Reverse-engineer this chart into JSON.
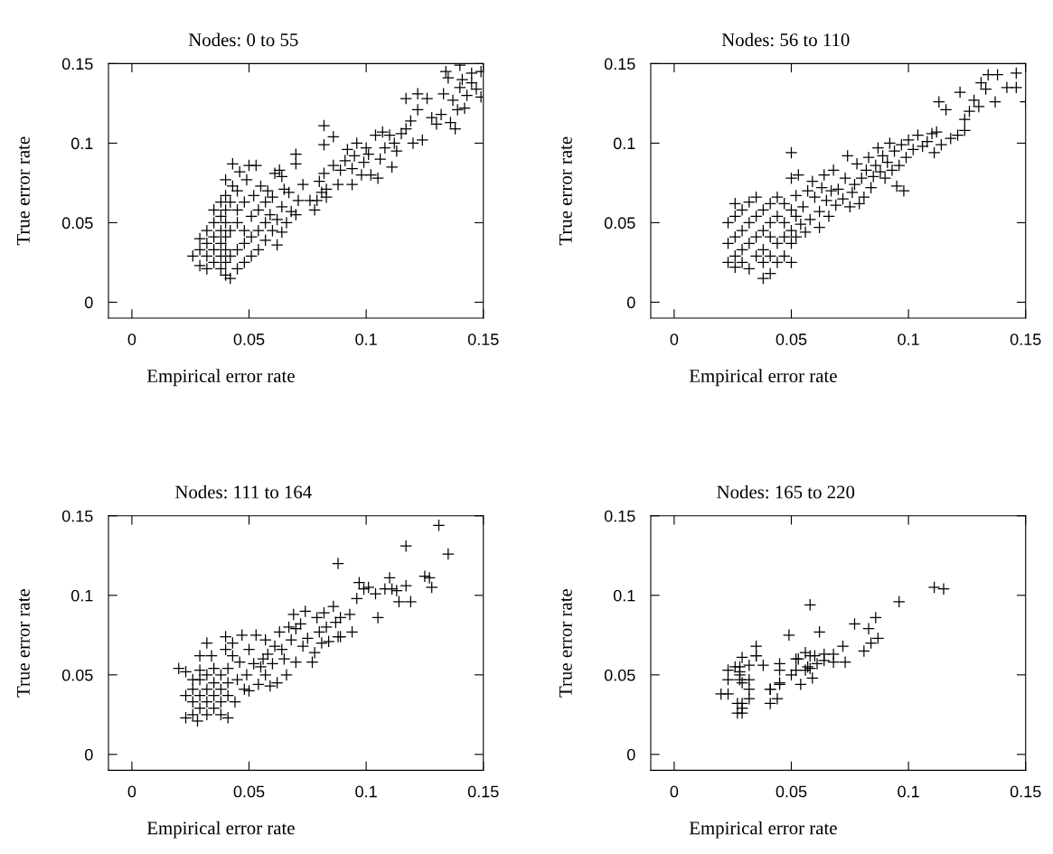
{
  "chart_data": [
    {
      "type": "scatter",
      "title": "Nodes: 0 to 55",
      "xlabel": "Empirical error rate",
      "ylabel": "True error rate",
      "marker": "cross",
      "xlim": [
        -0.01,
        0.15
      ],
      "ylim": [
        -0.01,
        0.15
      ],
      "xticks": [
        0,
        0.05,
        0.1,
        0.15
      ],
      "yticks": [
        0,
        0.05,
        0.1,
        0.15
      ],
      "series": [
        {
          "color": "#000000",
          "x": [
            0.026,
            0.029,
            0.029,
            0.029,
            0.032,
            0.032,
            0.032,
            0.032,
            0.035,
            0.035,
            0.035,
            0.035,
            0.035,
            0.038,
            0.038,
            0.038,
            0.038,
            0.038,
            0.038,
            0.04,
            0.04,
            0.04,
            0.04,
            0.04,
            0.04,
            0.04,
            0.04,
            0.042,
            0.042,
            0.042,
            0.042,
            0.043,
            0.043,
            0.045,
            0.045,
            0.045,
            0.045,
            0.045,
            0.046,
            0.048,
            0.048,
            0.048,
            0.048,
            0.049,
            0.05,
            0.051,
            0.051,
            0.051,
            0.052,
            0.053,
            0.054,
            0.054,
            0.054,
            0.055,
            0.057,
            0.057,
            0.057,
            0.058,
            0.059,
            0.06,
            0.06,
            0.062,
            0.062,
            0.061,
            0.063,
            0.064,
            0.064,
            0.064,
            0.065,
            0.066,
            0.067,
            0.068,
            0.07,
            0.07,
            0.07,
            0.071,
            0.073,
            0.076,
            0.078,
            0.079,
            0.08,
            0.081,
            0.082,
            0.083,
            0.083,
            0.082,
            0.082,
            0.086,
            0.086,
            0.088,
            0.089,
            0.091,
            0.092,
            0.094,
            0.094,
            0.095,
            0.096,
            0.098,
            0.099,
            0.1,
            0.101,
            0.102,
            0.104,
            0.105,
            0.106,
            0.107,
            0.108,
            0.11,
            0.111,
            0.112,
            0.113,
            0.115,
            0.117,
            0.117,
            0.119,
            0.12,
            0.122,
            0.122,
            0.124,
            0.126,
            0.128,
            0.13,
            0.132,
            0.133,
            0.134,
            0.135,
            0.136,
            0.137,
            0.138,
            0.139,
            0.14,
            0.141,
            0.142,
            0.143,
            0.145,
            0.145,
            0.147,
            0.149,
            0.149,
            0.14
          ],
          "values": [
            0.029,
            0.023,
            0.033,
            0.04,
            0.021,
            0.029,
            0.037,
            0.045,
            0.025,
            0.033,
            0.041,
            0.05,
            0.058,
            0.021,
            0.029,
            0.037,
            0.045,
            0.054,
            0.063,
            0.017,
            0.025,
            0.033,
            0.041,
            0.05,
            0.058,
            0.067,
            0.077,
            0.015,
            0.029,
            0.045,
            0.063,
            0.073,
            0.087,
            0.021,
            0.033,
            0.05,
            0.058,
            0.07,
            0.082,
            0.025,
            0.037,
            0.045,
            0.063,
            0.077,
            0.086,
            0.029,
            0.041,
            0.054,
            0.067,
            0.086,
            0.033,
            0.045,
            0.058,
            0.073,
            0.039,
            0.05,
            0.063,
            0.07,
            0.055,
            0.045,
            0.066,
            0.036,
            0.052,
            0.081,
            0.083,
            0.079,
            0.06,
            0.044,
            0.071,
            0.05,
            0.069,
            0.057,
            0.055,
            0.087,
            0.093,
            0.064,
            0.074,
            0.064,
            0.058,
            0.064,
            0.076,
            0.069,
            0.081,
            0.071,
            0.066,
            0.099,
            0.111,
            0.104,
            0.086,
            0.074,
            0.083,
            0.089,
            0.096,
            0.084,
            0.074,
            0.092,
            0.1,
            0.08,
            0.088,
            0.097,
            0.093,
            0.08,
            0.105,
            0.078,
            0.09,
            0.107,
            0.097,
            0.105,
            0.085,
            0.1,
            0.095,
            0.106,
            0.109,
            0.128,
            0.114,
            0.1,
            0.121,
            0.131,
            0.102,
            0.128,
            0.116,
            0.112,
            0.118,
            0.131,
            0.145,
            0.141,
            0.113,
            0.127,
            0.109,
            0.121,
            0.135,
            0.14,
            0.122,
            0.13,
            0.144,
            0.138,
            0.134,
            0.129,
            0.145,
            0.149
          ]
        }
      ]
    },
    {
      "type": "scatter",
      "title": "Nodes: 56 to 110",
      "xlabel": "Empirical error rate",
      "ylabel": "True error rate",
      "marker": "cross",
      "xlim": [
        -0.01,
        0.15
      ],
      "ylim": [
        -0.01,
        0.15
      ],
      "xticks": [
        0,
        0.05,
        0.1,
        0.15
      ],
      "yticks": [
        0,
        0.05,
        0.1,
        0.15
      ],
      "series": [
        {
          "color": "#000000",
          "x": [
            0.023,
            0.023,
            0.023,
            0.026,
            0.026,
            0.026,
            0.026,
            0.026,
            0.029,
            0.029,
            0.029,
            0.029,
            0.032,
            0.032,
            0.032,
            0.032,
            0.035,
            0.035,
            0.035,
            0.035,
            0.038,
            0.038,
            0.038,
            0.038,
            0.038,
            0.041,
            0.041,
            0.041,
            0.041,
            0.041,
            0.044,
            0.044,
            0.044,
            0.044,
            0.047,
            0.047,
            0.047,
            0.047,
            0.05,
            0.05,
            0.05,
            0.05,
            0.05,
            0.05,
            0.052,
            0.052,
            0.052,
            0.053,
            0.054,
            0.055,
            0.056,
            0.057,
            0.058,
            0.059,
            0.06,
            0.062,
            0.062,
            0.063,
            0.064,
            0.065,
            0.066,
            0.067,
            0.068,
            0.069,
            0.07,
            0.072,
            0.073,
            0.074,
            0.075,
            0.076,
            0.077,
            0.078,
            0.079,
            0.08,
            0.081,
            0.082,
            0.083,
            0.084,
            0.085,
            0.086,
            0.087,
            0.088,
            0.089,
            0.09,
            0.091,
            0.092,
            0.093,
            0.094,
            0.095,
            0.096,
            0.097,
            0.098,
            0.099,
            0.1,
            0.102,
            0.104,
            0.106,
            0.108,
            0.11,
            0.111,
            0.112,
            0.114,
            0.116,
            0.118,
            0.121,
            0.124,
            0.124,
            0.126,
            0.128,
            0.13,
            0.131,
            0.133,
            0.134,
            0.137,
            0.138,
            0.142,
            0.146,
            0.146,
            0.15,
            0.113,
            0.122
          ],
          "values": [
            0.025,
            0.037,
            0.05,
            0.022,
            0.029,
            0.041,
            0.054,
            0.062,
            0.025,
            0.033,
            0.045,
            0.058,
            0.021,
            0.037,
            0.05,
            0.063,
            0.029,
            0.041,
            0.054,
            0.066,
            0.015,
            0.025,
            0.033,
            0.045,
            0.058,
            0.018,
            0.029,
            0.041,
            0.05,
            0.062,
            0.025,
            0.037,
            0.054,
            0.066,
            0.029,
            0.041,
            0.05,
            0.062,
            0.025,
            0.037,
            0.045,
            0.058,
            0.094,
            0.078,
            0.041,
            0.054,
            0.067,
            0.08,
            0.049,
            0.06,
            0.044,
            0.07,
            0.052,
            0.076,
            0.066,
            0.047,
            0.057,
            0.072,
            0.08,
            0.064,
            0.054,
            0.07,
            0.083,
            0.061,
            0.071,
            0.065,
            0.078,
            0.092,
            0.06,
            0.069,
            0.074,
            0.087,
            0.062,
            0.078,
            0.066,
            0.083,
            0.091,
            0.072,
            0.079,
            0.086,
            0.097,
            0.082,
            0.092,
            0.078,
            0.088,
            0.1,
            0.083,
            0.095,
            0.073,
            0.086,
            0.099,
            0.07,
            0.091,
            0.102,
            0.096,
            0.105,
            0.098,
            0.101,
            0.106,
            0.094,
            0.107,
            0.099,
            0.121,
            0.103,
            0.105,
            0.115,
            0.108,
            0.12,
            0.127,
            0.123,
            0.138,
            0.134,
            0.143,
            0.126,
            0.143,
            0.135,
            0.135,
            0.144,
            0.126,
            0.126,
            0.132
          ]
        }
      ]
    },
    {
      "type": "scatter",
      "title": "Nodes: 111 to 164",
      "xlabel": "Empirical error rate",
      "ylabel": "True error rate",
      "marker": "cross",
      "xlim": [
        -0.01,
        0.15
      ],
      "ylim": [
        -0.01,
        0.15
      ],
      "xticks": [
        0,
        0.05,
        0.1,
        0.15
      ],
      "yticks": [
        0,
        0.05,
        0.1,
        0.15
      ],
      "series": [
        {
          "color": "#000000",
          "x": [
            0.02,
            0.023,
            0.023,
            0.023,
            0.026,
            0.026,
            0.026,
            0.026,
            0.028,
            0.029,
            0.029,
            0.029,
            0.029,
            0.029,
            0.032,
            0.032,
            0.032,
            0.032,
            0.032,
            0.034,
            0.035,
            0.035,
            0.035,
            0.035,
            0.038,
            0.038,
            0.038,
            0.038,
            0.04,
            0.04,
            0.041,
            0.041,
            0.041,
            0.041,
            0.043,
            0.043,
            0.044,
            0.045,
            0.046,
            0.047,
            0.048,
            0.049,
            0.05,
            0.05,
            0.052,
            0.053,
            0.054,
            0.055,
            0.056,
            0.057,
            0.057,
            0.058,
            0.059,
            0.06,
            0.061,
            0.062,
            0.063,
            0.064,
            0.065,
            0.066,
            0.067,
            0.068,
            0.069,
            0.07,
            0.07,
            0.072,
            0.073,
            0.074,
            0.075,
            0.077,
            0.078,
            0.079,
            0.08,
            0.081,
            0.082,
            0.083,
            0.084,
            0.086,
            0.087,
            0.088,
            0.089,
            0.089,
            0.093,
            0.094,
            0.088,
            0.096,
            0.097,
            0.099,
            0.101,
            0.104,
            0.105,
            0.108,
            0.11,
            0.111,
            0.113,
            0.114,
            0.117,
            0.117,
            0.119,
            0.125,
            0.127,
            0.128,
            0.131,
            0.135
          ],
          "values": [
            0.054,
            0.052,
            0.037,
            0.023,
            0.041,
            0.033,
            0.047,
            0.025,
            0.021,
            0.037,
            0.047,
            0.029,
            0.053,
            0.062,
            0.07,
            0.033,
            0.041,
            0.05,
            0.025,
            0.062,
            0.045,
            0.037,
            0.029,
            0.054,
            0.041,
            0.05,
            0.025,
            0.033,
            0.066,
            0.074,
            0.045,
            0.037,
            0.023,
            0.054,
            0.062,
            0.07,
            0.033,
            0.047,
            0.058,
            0.075,
            0.041,
            0.05,
            0.066,
            0.04,
            0.057,
            0.075,
            0.044,
            0.055,
            0.06,
            0.05,
            0.072,
            0.063,
            0.043,
            0.057,
            0.068,
            0.045,
            0.077,
            0.066,
            0.06,
            0.05,
            0.08,
            0.072,
            0.088,
            0.058,
            0.079,
            0.082,
            0.068,
            0.09,
            0.073,
            0.058,
            0.064,
            0.086,
            0.077,
            0.07,
            0.089,
            0.08,
            0.071,
            0.093,
            0.083,
            0.074,
            0.086,
            0.074,
            0.088,
            0.077,
            0.12,
            0.098,
            0.108,
            0.104,
            0.105,
            0.101,
            0.086,
            0.104,
            0.111,
            0.104,
            0.103,
            0.096,
            0.106,
            0.131,
            0.096,
            0.112,
            0.111,
            0.105,
            0.144,
            0.126
          ]
        }
      ]
    },
    {
      "type": "scatter",
      "title": "Nodes: 165 to 220",
      "xlabel": "Empirical error rate",
      "ylabel": "True error rate",
      "marker": "cross",
      "xlim": [
        -0.01,
        0.15
      ],
      "ylim": [
        -0.01,
        0.15
      ],
      "xticks": [
        0,
        0.05,
        0.1,
        0.15
      ],
      "yticks": [
        0,
        0.05,
        0.1,
        0.15
      ],
      "series": [
        {
          "color": "#000000",
          "x": [
            0.02,
            0.023,
            0.023,
            0.023,
            0.026,
            0.028,
            0.028,
            0.028,
            0.028,
            0.029,
            0.032,
            0.032,
            0.032,
            0.027,
            0.027,
            0.029,
            0.029,
            0.029,
            0.029,
            0.032,
            0.035,
            0.035,
            0.035,
            0.041,
            0.038,
            0.041,
            0.041,
            0.044,
            0.045,
            0.045,
            0.045,
            0.049,
            0.05,
            0.045,
            0.052,
            0.053,
            0.054,
            0.056,
            0.056,
            0.058,
            0.058,
            0.059,
            0.06,
            0.061,
            0.062,
            0.064,
            0.064,
            0.068,
            0.068,
            0.072,
            0.073,
            0.077,
            0.081,
            0.083,
            0.086,
            0.084,
            0.087,
            0.096,
            0.111,
            0.115,
            0.052,
            0.058,
            0.057
          ],
          "values": [
            0.038,
            0.038,
            0.053,
            0.047,
            0.055,
            0.055,
            0.052,
            0.05,
            0.047,
            0.045,
            0.047,
            0.041,
            0.035,
            0.032,
            0.026,
            0.032,
            0.026,
            0.029,
            0.061,
            0.056,
            0.068,
            0.062,
            0.062,
            0.041,
            0.056,
            0.032,
            0.041,
            0.035,
            0.044,
            0.053,
            0.057,
            0.075,
            0.05,
            0.045,
            0.053,
            0.06,
            0.044,
            0.064,
            0.053,
            0.062,
            0.094,
            0.048,
            0.062,
            0.057,
            0.077,
            0.063,
            0.059,
            0.063,
            0.058,
            0.068,
            0.058,
            0.082,
            0.065,
            0.079,
            0.086,
            0.07,
            0.073,
            0.096,
            0.105,
            0.104,
            0.06,
            0.054,
            0.055
          ]
        }
      ]
    }
  ]
}
